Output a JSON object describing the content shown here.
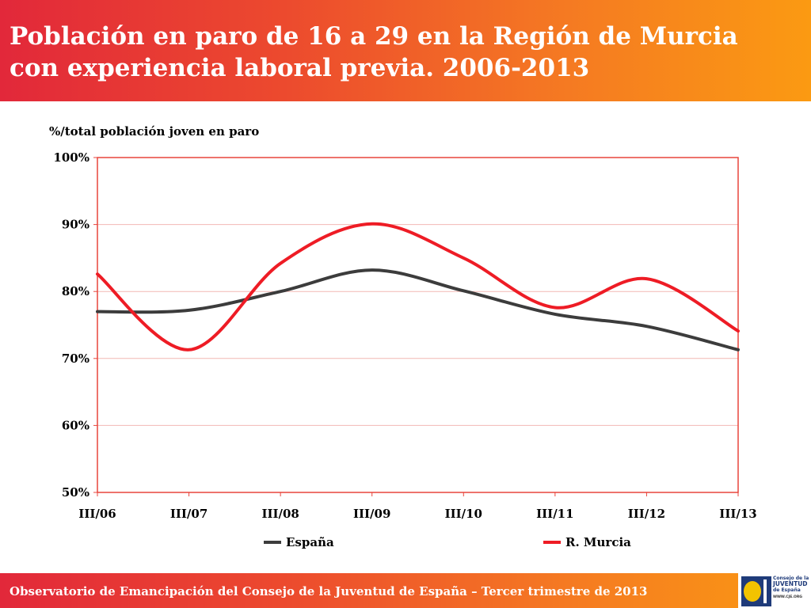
{
  "title": "Población en paro de 16 a 29 en la Región de Murcia con experiencia laboral previa. 2006-2013",
  "footer": {
    "text": "Observatorio de Emancipación del Consejo de la Juventud de España – Tercer trimestre de 2013",
    "logo_line1": "Consejo de la",
    "logo_line2": "JUVENTUD",
    "logo_line3": "de España",
    "logo_url": "WWW.CJE.ORG"
  },
  "colors": {
    "espana": "#3c3c3c",
    "murcia": "#ee1c25",
    "plot_border": "#e8453c",
    "grid": "#f2b8b4"
  },
  "chart_data": {
    "type": "line",
    "title": "",
    "ylabel": "%/total población joven en paro",
    "xlabel": "",
    "categories": [
      "III/06",
      "III/07",
      "III/08",
      "III/09",
      "III/10",
      "III/11",
      "III/12",
      "III/13"
    ],
    "ylim": [
      50,
      100
    ],
    "yticks": [
      50,
      60,
      70,
      80,
      90,
      100
    ],
    "ytick_labels": [
      "50%",
      "60%",
      "70%",
      "80%",
      "90%",
      "100%"
    ],
    "legend_position": "bottom",
    "series": [
      {
        "name": "España",
        "values": [
          77.0,
          77.2,
          80.0,
          83.2,
          80.1,
          76.6,
          74.8,
          71.3
        ]
      },
      {
        "name": "R. Murcia",
        "values": [
          82.6,
          71.3,
          84.2,
          90.1,
          85.0,
          77.6,
          81.9,
          74.1
        ]
      }
    ]
  }
}
